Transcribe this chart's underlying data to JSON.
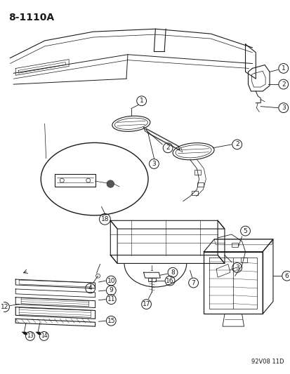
{
  "page_id": "8-1110A",
  "figure_code": "92V08 11D",
  "bg_color": "#ffffff",
  "line_color": "#1a1a1a",
  "fig_width": 4.14,
  "fig_height": 5.33,
  "dpi": 100
}
